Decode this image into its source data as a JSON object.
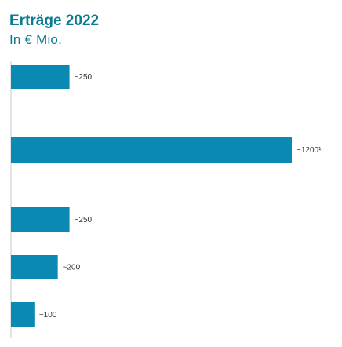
{
  "colors": {
    "title": "#0b7a93",
    "bar": "#0a8ab3",
    "axis": "#c8c8c8",
    "label": "#333333"
  },
  "chart_data": {
    "type": "bar",
    "orientation": "horizontal",
    "title": "Erträge 2022",
    "subtitle": "In € Mio.",
    "xlabel": "",
    "ylabel": "",
    "grid": false,
    "xlim": [
      0,
      1250
    ],
    "values": [
      250,
      1200,
      250,
      200,
      100
    ],
    "data_labels": [
      "~250",
      "~1200¹",
      "~250",
      "~200",
      "~100"
    ]
  }
}
